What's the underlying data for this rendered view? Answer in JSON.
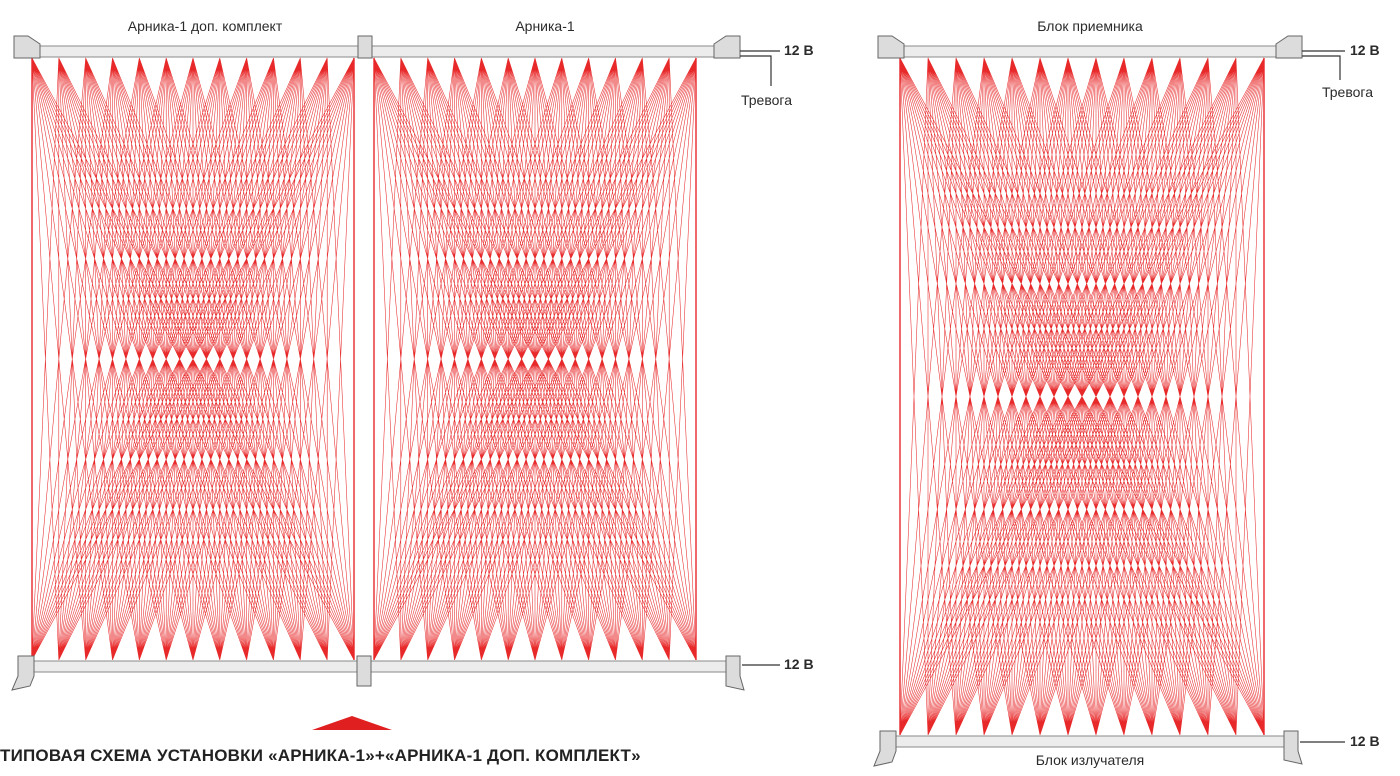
{
  "left_scheme": {
    "label_extra": "Арника-1 доп. комплект",
    "label_main": "Арника-1",
    "top_voltage": "12 В",
    "alarm": "Тревога",
    "bottom_voltage": "12 В"
  },
  "right_scheme": {
    "receiver": "Блок приемника",
    "emitter": "Блок излучателя",
    "top_voltage": "12 В",
    "alarm": "Тревога",
    "bottom_voltage": "12 В"
  },
  "caption": "ТИПОВАЯ СХЕМА УСТАНОВКИ «АРНИКА-1»+«АРНИКА-1 ДОП. КОМПЛЕКТ»",
  "colors": {
    "beam": "#e8292a",
    "bar": "#e6e6e6",
    "bar_stroke": "#8a8a8a",
    "accent": "#e02020"
  }
}
